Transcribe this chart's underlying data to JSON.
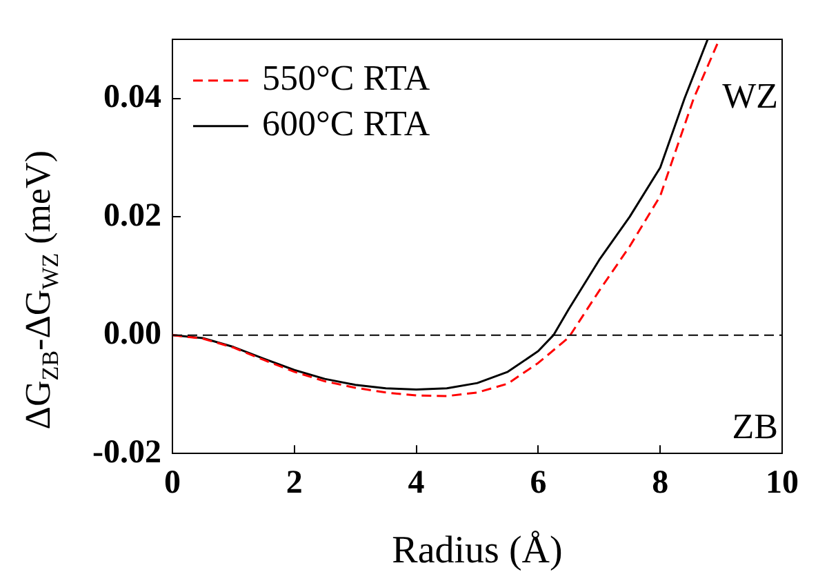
{
  "chart_data": {
    "type": "line",
    "xlabel": "Radius (Å)",
    "ylabel": "ΔG$_{ZB}$-ΔG$_{WZ}$ (meV)",
    "xlim": [
      0,
      10
    ],
    "xticks": [
      0,
      2,
      4,
      6,
      8,
      10
    ],
    "ylim": [
      -0.02,
      0.05
    ],
    "yticks": [
      {
        "value": -0.02,
        "label": "-0.02"
      },
      {
        "value": 0,
        "label": "0.00"
      },
      {
        "value": 0.02,
        "label": "0.02"
      },
      {
        "value": 0.04,
        "label": "0.04"
      }
    ],
    "series": [
      {
        "name": "550°C RTA",
        "color": "#ff0000",
        "line_style": "dashed",
        "x": [
          0,
          0.5,
          1,
          1.5,
          2,
          2.5,
          3,
          3.5,
          4,
          4.5,
          5,
          5.5,
          6,
          6.5,
          7,
          7.5,
          8,
          8.55,
          8.97
        ],
        "values": [
          0,
          -0.0006,
          -0.0021,
          -0.0042,
          -0.0062,
          -0.0078,
          -0.0089,
          -0.0097,
          -0.0102,
          -0.0103,
          -0.0097,
          -0.0082,
          -0.0047,
          -0.0004,
          0.0075,
          0.015,
          0.0235,
          0.04,
          0.05
        ]
      },
      {
        "name": "600°C RTA",
        "color": "#000000",
        "line_style": "solid",
        "x": [
          0,
          0.5,
          1,
          1.5,
          2,
          2.5,
          3,
          3.5,
          4,
          4.5,
          5,
          5.5,
          6,
          6.25,
          6.5,
          7,
          7.5,
          8,
          8.4,
          8.78
        ],
        "values": [
          0,
          -0.0005,
          -0.002,
          -0.004,
          -0.0059,
          -0.0074,
          -0.0084,
          -0.009,
          -0.0092,
          -0.009,
          -0.0081,
          -0.0062,
          -0.0027,
          0,
          0.0044,
          0.0127,
          0.02,
          0.0283,
          0.04,
          0.05
        ]
      }
    ],
    "ref_lines": [
      {
        "axis": "y",
        "value": 0,
        "color": "#000000",
        "line_style": "dashed"
      }
    ],
    "annotations": [
      "WZ",
      "ZB"
    ],
    "legend": "top left",
    "marker": "none",
    "grid": false
  }
}
